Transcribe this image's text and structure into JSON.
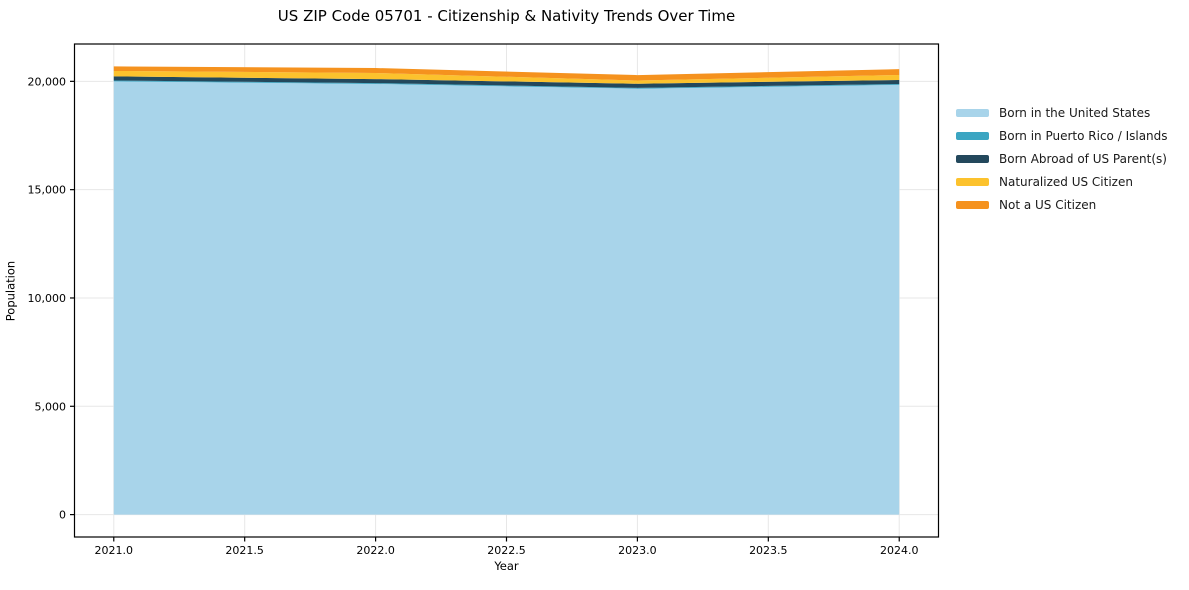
{
  "chart_data": {
    "type": "area",
    "stacked": true,
    "title": "US ZIP Code 05701 - Citizenship & Nativity Trends Over Time",
    "xlabel": "Year",
    "ylabel": "Population",
    "x": [
      2021,
      2022,
      2023,
      2024
    ],
    "series": [
      {
        "name": "Born in the United States",
        "color": "#A8D4EA",
        "values": [
          20000,
          19880,
          19660,
          19840
        ]
      },
      {
        "name": "Born in Puerto Rico / Islands",
        "color": "#3BA5C2",
        "values": [
          40,
          40,
          40,
          40
        ]
      },
      {
        "name": "Born Abroad of US Parent(s)",
        "color": "#23485C",
        "values": [
          190,
          185,
          190,
          185
        ]
      },
      {
        "name": "Naturalized US Citizen",
        "color": "#FCC22D",
        "values": [
          250,
          280,
          150,
          230
        ]
      },
      {
        "name": "Not a US Citizen",
        "color": "#F5921E",
        "values": [
          210,
          230,
          250,
          270
        ]
      }
    ],
    "xlim": [
      2020.85,
      2024.15
    ],
    "ylim": [
      -1034,
      21724
    ],
    "x_ticks": [
      2021.0,
      2021.5,
      2022.0,
      2022.5,
      2023.0,
      2023.5,
      2024.0
    ],
    "x_tick_labels": [
      "2021.0",
      "2021.5",
      "2022.0",
      "2022.5",
      "2023.0",
      "2023.5",
      "2024.0"
    ],
    "y_ticks": [
      0,
      5000,
      10000,
      15000,
      20000
    ],
    "y_tick_labels": [
      "0",
      "5,000",
      "10,000",
      "15,000",
      "20,000"
    ],
    "grid": true,
    "legend_position": "right-outside",
    "colors": {
      "grid": "#E7E7E7",
      "spine": "#000000",
      "background": "#FFFFFF"
    }
  }
}
